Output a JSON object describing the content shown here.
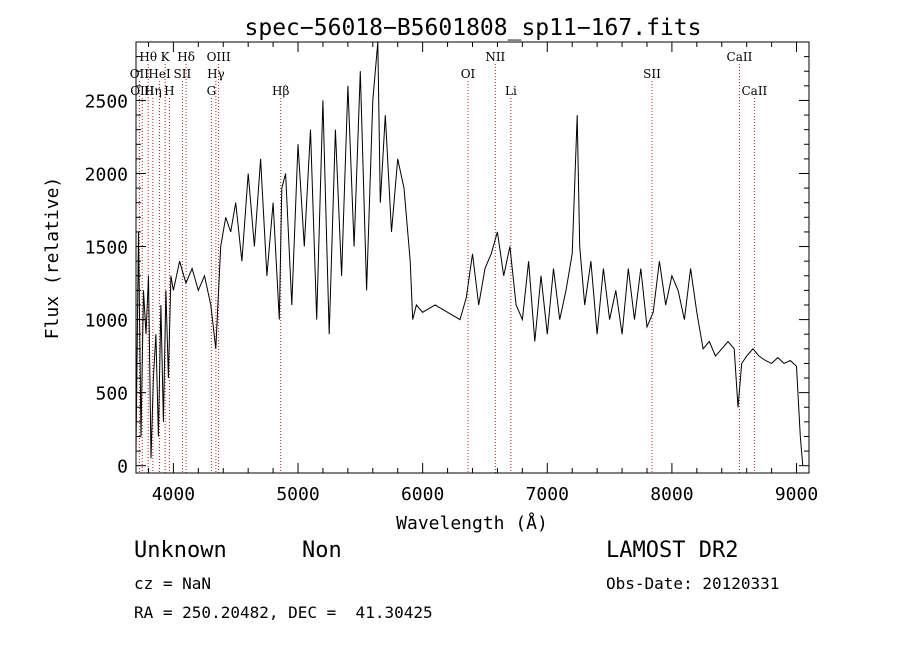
{
  "chart_data": {
    "type": "line",
    "title": "spec−56018−B5601808_sp11−167.fits",
    "xlabel": "Wavelength (Å)",
    "ylabel": "Flux (relative)",
    "xlim": [
      3700,
      9100
    ],
    "ylim": [
      -50,
      2900
    ],
    "xticks": [
      4000,
      5000,
      6000,
      7000,
      8000,
      9000
    ],
    "yticks": [
      0,
      500,
      1000,
      1500,
      2000,
      2500
    ],
    "grid": false,
    "line_color": "#000000",
    "marker_color": "#b22222",
    "series": [
      {
        "x": [
          3700,
          3720,
          3740,
          3760,
          3780,
          3800,
          3820,
          3840,
          3860,
          3880,
          3900,
          3920,
          3940,
          3960,
          3980,
          4000,
          4050,
          4100,
          4150,
          4200,
          4250,
          4300,
          4340,
          4380,
          4420,
          4460,
          4500,
          4550,
          4600,
          4650,
          4700,
          4750,
          4800,
          4850,
          4870,
          4900,
          4950,
          5000,
          5050,
          5100,
          5150,
          5200,
          5250,
          5300,
          5350,
          5400,
          5450,
          5500,
          5550,
          5600,
          5640,
          5660,
          5700,
          5750,
          5800,
          5850,
          5900,
          5920,
          5950,
          6000,
          6100,
          6200,
          6300,
          6350,
          6400,
          6450,
          6500,
          6550,
          6600,
          6650,
          6700,
          6750,
          6800,
          6850,
          6900,
          6950,
          7000,
          7050,
          7100,
          7150,
          7200,
          7240,
          7260,
          7300,
          7350,
          7400,
          7450,
          7500,
          7550,
          7600,
          7650,
          7700,
          7750,
          7800,
          7850,
          7900,
          7950,
          8000,
          8050,
          8100,
          8150,
          8200,
          8250,
          8300,
          8350,
          8400,
          8450,
          8500,
          8530,
          8560,
          8600,
          8650,
          8700,
          8750,
          8800,
          8850,
          8900,
          8950,
          9000,
          9030,
          9050
        ],
        "y": [
          100,
          1600,
          200,
          1200,
          900,
          1300,
          50,
          600,
          900,
          200,
          1100,
          300,
          1200,
          600,
          1300,
          1200,
          1400,
          1250,
          1350,
          1200,
          1300,
          1100,
          800,
          1500,
          1700,
          1600,
          1800,
          1400,
          2000,
          1500,
          2100,
          1300,
          1800,
          1000,
          1900,
          2000,
          1100,
          2200,
          1500,
          2300,
          1000,
          2500,
          900,
          2300,
          1300,
          2600,
          1500,
          2700,
          1200,
          2500,
          2900,
          1800,
          2400,
          1600,
          2100,
          1900,
          1400,
          1000,
          1100,
          1050,
          1100,
          1050,
          1000,
          1150,
          1450,
          1100,
          1350,
          1450,
          1600,
          1300,
          1500,
          1100,
          1000,
          1400,
          850,
          1300,
          900,
          1350,
          1000,
          1200,
          1450,
          2400,
          1500,
          1100,
          1400,
          900,
          1350,
          1000,
          1200,
          900,
          1350,
          1000,
          1350,
          950,
          1050,
          1400,
          1100,
          1300,
          1200,
          1000,
          1350,
          1050,
          800,
          850,
          750,
          800,
          850,
          800,
          400,
          700,
          750,
          800,
          750,
          720,
          700,
          740,
          700,
          720,
          680,
          200,
          0
        ]
      }
    ],
    "line_markers": [
      {
        "label": "Hθ",
        "x": 3798,
        "row": 1
      },
      {
        "label": "K",
        "x": 3934,
        "row": 1
      },
      {
        "label": "Hδ",
        "x": 4102,
        "row": 1
      },
      {
        "label": "OIII",
        "x": 4363,
        "row": 1
      },
      {
        "label": "NII",
        "x": 6583,
        "row": 1
      },
      {
        "label": "CaII",
        "x": 8542,
        "row": 1
      },
      {
        "label": "OII",
        "x": 3727,
        "row": 2
      },
      {
        "label": "HeI",
        "x": 3889,
        "row": 2
      },
      {
        "label": "SII",
        "x": 4072,
        "row": 2
      },
      {
        "label": "Hγ",
        "x": 4341,
        "row": 2
      },
      {
        "label": "OI",
        "x": 6364,
        "row": 2
      },
      {
        "label": "SII",
        "x": 7840,
        "row": 2
      },
      {
        "label": "OIII",
        "x": 3750,
        "row": 3
      },
      {
        "label": "Hη",
        "x": 3835,
        "row": 3
      },
      {
        "label": "H",
        "x": 3968,
        "row": 3
      },
      {
        "label": "G",
        "x": 4305,
        "row": 3
      },
      {
        "label": "Hβ",
        "x": 4861,
        "row": 3
      },
      {
        "label": "Li",
        "x": 6708,
        "row": 3
      },
      {
        "label": "CaII",
        "x": 8662,
        "row": 3
      }
    ]
  },
  "info": {
    "object_class": "Unknown",
    "subclass": "Non",
    "survey": "LAMOST DR2",
    "redshift": "cz = NaN",
    "obs_date": "Obs-Date: 20120331",
    "coords": "RA = 250.20482, DEC =  41.30425"
  }
}
